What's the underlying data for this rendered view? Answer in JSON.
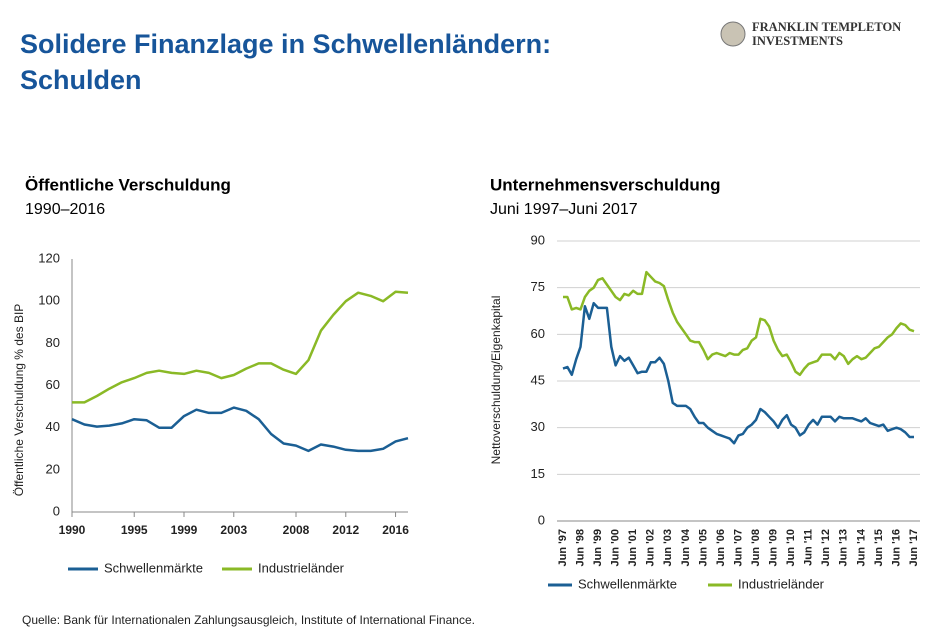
{
  "header": {
    "title": [
      "Solidere Finanzlage in Schwellenländern:",
      "Schulden"
    ],
    "logo": [
      "FRANKLIN TEMPLETON",
      "INVESTMENTS"
    ]
  },
  "chart_data": [
    {
      "type": "line",
      "title": "Öffentliche Verschuldung",
      "subtitle": "1990–2016",
      "ylabel": "Öffentliche Verschuldung % des BIP",
      "x": [
        1990,
        1991,
        1992,
        1993,
        1994,
        1995,
        1996,
        1997,
        1998,
        1999,
        2000,
        2001,
        2002,
        2003,
        2004,
        2005,
        2006,
        2007,
        2008,
        2009,
        2010,
        2011,
        2012,
        2013,
        2014,
        2015,
        2016,
        2017
      ],
      "xlim": [
        1990,
        2017
      ],
      "xticks": [
        1990,
        1995,
        1999,
        2003,
        2008,
        2012,
        2016
      ],
      "ylim": [
        0,
        120
      ],
      "yticks": [
        0,
        20,
        40,
        60,
        80,
        100,
        120
      ],
      "grid": false,
      "series": [
        {
          "name": "Schwellenmärkte",
          "color": "#1b5f94",
          "values": [
            44,
            41.5,
            40.5,
            41,
            42,
            44,
            43.5,
            40,
            40,
            45.5,
            48.5,
            47,
            47,
            49.5,
            48,
            44,
            37,
            32.5,
            31.5,
            29,
            32,
            31,
            29.5,
            29,
            29,
            30,
            33.5,
            35
          ]
        },
        {
          "name": "Industrieländer",
          "color": "#8ab926",
          "values": [
            52,
            52,
            55,
            58.5,
            61.5,
            63.5,
            66,
            67,
            66,
            65.5,
            67,
            66,
            63.5,
            65,
            68,
            70.5,
            70.5,
            67.5,
            65.5,
            72,
            86,
            93.5,
            100,
            104,
            102.5,
            100,
            104.5,
            104
          ]
        }
      ]
    },
    {
      "type": "line",
      "title": "Unternehmensverschuldung",
      "subtitle": "Juni 1997–Juni 2017",
      "ylabel": "Nettoverschuldung/Eigenkapital",
      "categories": [
        "Jun '97",
        null,
        null,
        null,
        "Jun '98",
        null,
        null,
        null,
        "Jun '99",
        null,
        null,
        null,
        "Jun '00",
        null,
        null,
        null,
        "Jun '01",
        null,
        null,
        null,
        "Jun '02",
        null,
        null,
        null,
        "Jun '03",
        null,
        null,
        null,
        "Jun '04",
        null,
        null,
        null,
        "Jun '05",
        null,
        null,
        null,
        "Jun '06",
        null,
        null,
        null,
        "Jun '07",
        null,
        null,
        null,
        "Jun '08",
        null,
        null,
        null,
        "Jun '09",
        null,
        null,
        null,
        "Jun '10",
        null,
        null,
        null,
        "Jun '11",
        null,
        null,
        null,
        "Jun '12",
        null,
        null,
        null,
        "Jun '13",
        null,
        null,
        null,
        "Jun '14",
        null,
        null,
        null,
        "Jun '15",
        null,
        null,
        null,
        "Jun '16",
        null,
        null,
        null,
        "Jun '17"
      ],
      "ylim": [
        0,
        90
      ],
      "yticks": [
        0,
        15,
        30,
        45,
        60,
        75,
        90
      ],
      "grid": true,
      "series": [
        {
          "name": "Schwellenmärkte",
          "color": "#1b5f94",
          "values": [
            49,
            49.5,
            47,
            52,
            56,
            69,
            65,
            70,
            68.5,
            68.5,
            68.5,
            56,
            50,
            53,
            51.5,
            52.5,
            50,
            47.5,
            48,
            48,
            51,
            51,
            52.5,
            50.5,
            45,
            38,
            37,
            37,
            37,
            36,
            33.5,
            31.5,
            31.5,
            30,
            29,
            28,
            27.5,
            27,
            26.5,
            25,
            27.5,
            28,
            30,
            31,
            32.5,
            36,
            35,
            33.5,
            32,
            30,
            32.5,
            34,
            31,
            30,
            27.5,
            28.5,
            31,
            32.5,
            31,
            33.5,
            33.5,
            33.5,
            32,
            33.5,
            33,
            33,
            33,
            32.5,
            32,
            33,
            31.5,
            31,
            30.5,
            31,
            29,
            29.5,
            30,
            29.5,
            28.5,
            27,
            27
          ]
        },
        {
          "name": "Industrieländer",
          "color": "#8ab926",
          "values": [
            72,
            72,
            68,
            68.5,
            68,
            72,
            74,
            75,
            77.5,
            78,
            76,
            74,
            72,
            71,
            73,
            72.5,
            74,
            73,
            73,
            80,
            78.5,
            77,
            76.5,
            75.5,
            71,
            67,
            64,
            62,
            60,
            58,
            57.5,
            57.5,
            55,
            52,
            53.5,
            54,
            53.5,
            53,
            54,
            53.5,
            53.5,
            55,
            55.5,
            58,
            59,
            65,
            64.5,
            62.5,
            58,
            55,
            53,
            53.5,
            51,
            48,
            47,
            49,
            50.5,
            51,
            51.5,
            53.5,
            53.5,
            53.5,
            52,
            54,
            53,
            50.5,
            52,
            53,
            52,
            52.5,
            54,
            55.5,
            56,
            57.5,
            59,
            60,
            62,
            63.5,
            63,
            61.5,
            61
          ]
        }
      ]
    }
  ],
  "source": "Quelle: Bank für Internationalen Zahlungsausgleich, Institute of International Finance."
}
